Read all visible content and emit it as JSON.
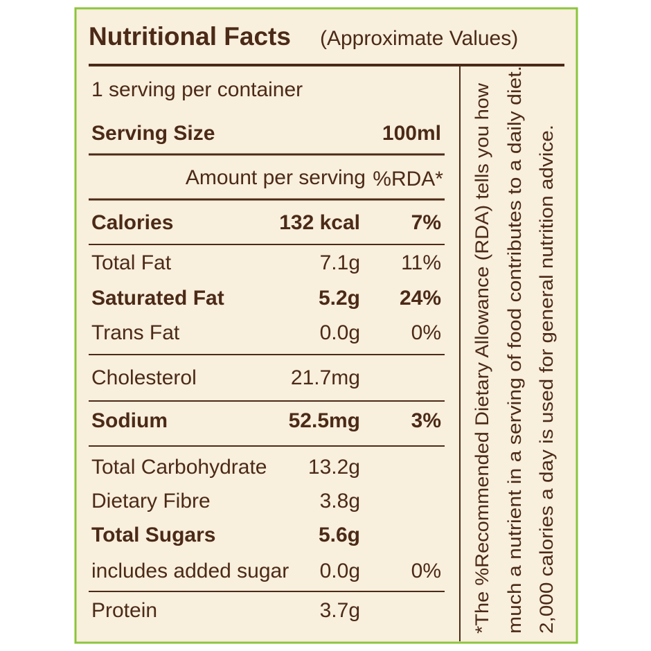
{
  "title": "Nutritional Facts",
  "subtitle": "(Approximate Values)",
  "servings": "1 serving per container",
  "serving_size": {
    "label": "Serving Size",
    "value": "100ml"
  },
  "header": {
    "amount": "Amount per serving",
    "rda": "%RDA*"
  },
  "rows": [
    {
      "name": "Calories",
      "amount": "132 kcal",
      "rda": "7%",
      "bold": true
    },
    {
      "name": "Total Fat",
      "amount": "7.1g",
      "rda": "11%",
      "bold": false
    },
    {
      "name": "Saturated Fat",
      "amount": "5.2g",
      "rda": "24%",
      "bold": true
    },
    {
      "name": "Trans Fat",
      "amount": "0.0g",
      "rda": "0%",
      "bold": false
    },
    {
      "name": "Cholesterol",
      "amount": "21.7mg",
      "bold": false
    },
    {
      "name": "Sodium",
      "amount": "52.5mg",
      "rda": "3%",
      "bold": true
    },
    {
      "name": "Total Carbohydrate",
      "amount": "13.2g",
      "bold": false
    },
    {
      "name": "Dietary Fibre",
      "amount": "3.8g",
      "bold": false
    },
    {
      "name": "Total Sugars",
      "amount": "5.6g",
      "bold": true
    },
    {
      "name": "includes added sugar",
      "amount": "0.0g",
      "rda": "0%",
      "bold": false
    },
    {
      "name": "Protein",
      "amount": "3.7g",
      "bold": false
    }
  ],
  "note": [
    "*The %Recommended Dietary Allowance (RDA) tells you how",
    "much a nutrient in a serving of food contributes to a daily diet.",
    "2,000 calories a day is used for general nutrition advice."
  ]
}
